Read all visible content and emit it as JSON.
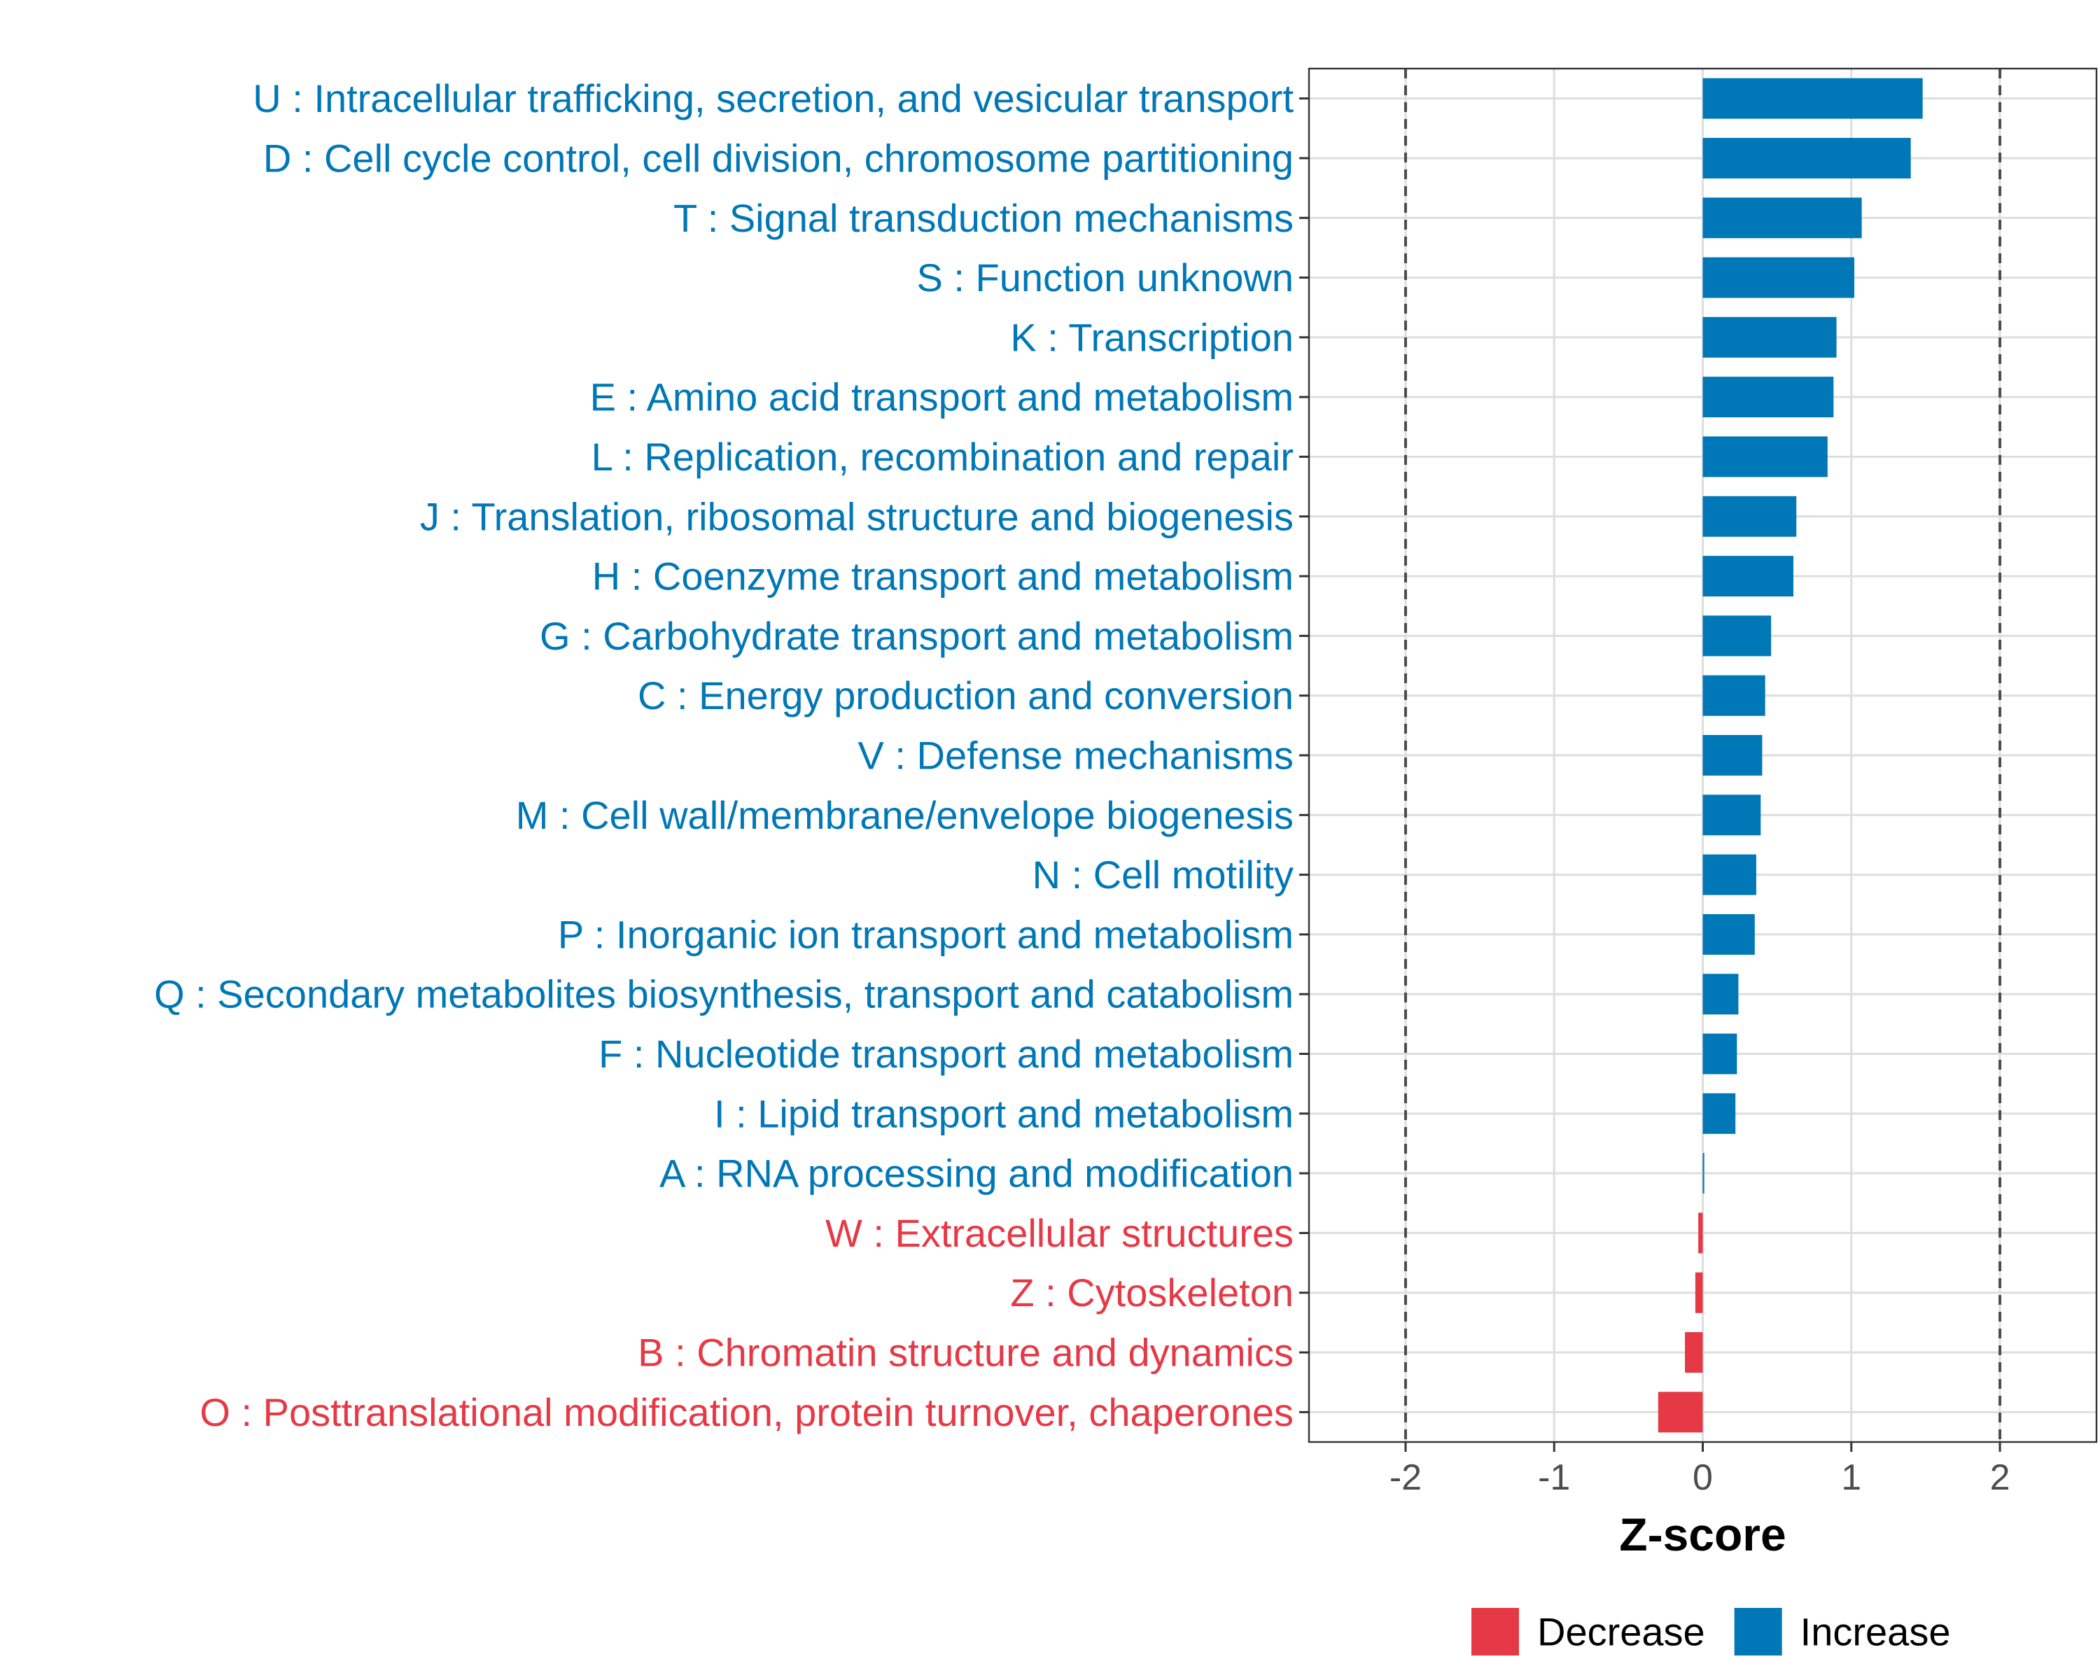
{
  "chart_data": {
    "type": "bar",
    "orientation": "horizontal",
    "xlabel": "Z-score",
    "xlim": [
      -2.65,
      2.65
    ],
    "xticks": [
      -2,
      -1,
      0,
      1,
      2
    ],
    "xtick_labels": [
      "-2",
      "-1",
      "0",
      "1",
      "2"
    ],
    "reference_lines": [
      -2,
      2
    ],
    "grid": true,
    "legend_position": "bottom",
    "colors": {
      "Decrease": "#e63946",
      "Increase": "#0077b6"
    },
    "legend": [
      {
        "name": "Decrease",
        "color": "#e63946"
      },
      {
        "name": "Increase",
        "color": "#0077b6"
      }
    ],
    "categories": [
      "U : Intracellular trafficking, secretion, and vesicular transport",
      "D : Cell cycle control, cell division, chromosome partitioning",
      "T : Signal transduction mechanisms",
      "S : Function unknown",
      "K : Transcription",
      "E : Amino acid transport and metabolism",
      "L : Replication, recombination and repair",
      "J : Translation, ribosomal structure and biogenesis",
      "H : Coenzyme transport and metabolism",
      "G : Carbohydrate transport and metabolism",
      "C : Energy production and conversion",
      "V : Defense mechanisms",
      "M : Cell wall/membrane/envelope biogenesis",
      "N : Cell motility",
      "P : Inorganic ion transport and metabolism",
      "Q : Secondary metabolites biosynthesis, transport and catabolism",
      "F : Nucleotide transport and metabolism",
      "I : Lipid transport and metabolism",
      "A : RNA processing and modification",
      "W : Extracellular structures",
      "Z : Cytoskeleton",
      "B : Chromatin structure and dynamics",
      "O : Posttranslational modification, protein turnover, chaperones"
    ],
    "values": [
      1.48,
      1.4,
      1.07,
      1.02,
      0.9,
      0.88,
      0.84,
      0.63,
      0.61,
      0.46,
      0.42,
      0.4,
      0.39,
      0.36,
      0.35,
      0.24,
      0.23,
      0.22,
      0.01,
      -0.03,
      -0.05,
      -0.12,
      -0.3
    ],
    "groups": [
      "Increase",
      "Increase",
      "Increase",
      "Increase",
      "Increase",
      "Increase",
      "Increase",
      "Increase",
      "Increase",
      "Increase",
      "Increase",
      "Increase",
      "Increase",
      "Increase",
      "Increase",
      "Increase",
      "Increase",
      "Increase",
      "Increase",
      "Decrease",
      "Decrease",
      "Decrease",
      "Decrease"
    ]
  }
}
